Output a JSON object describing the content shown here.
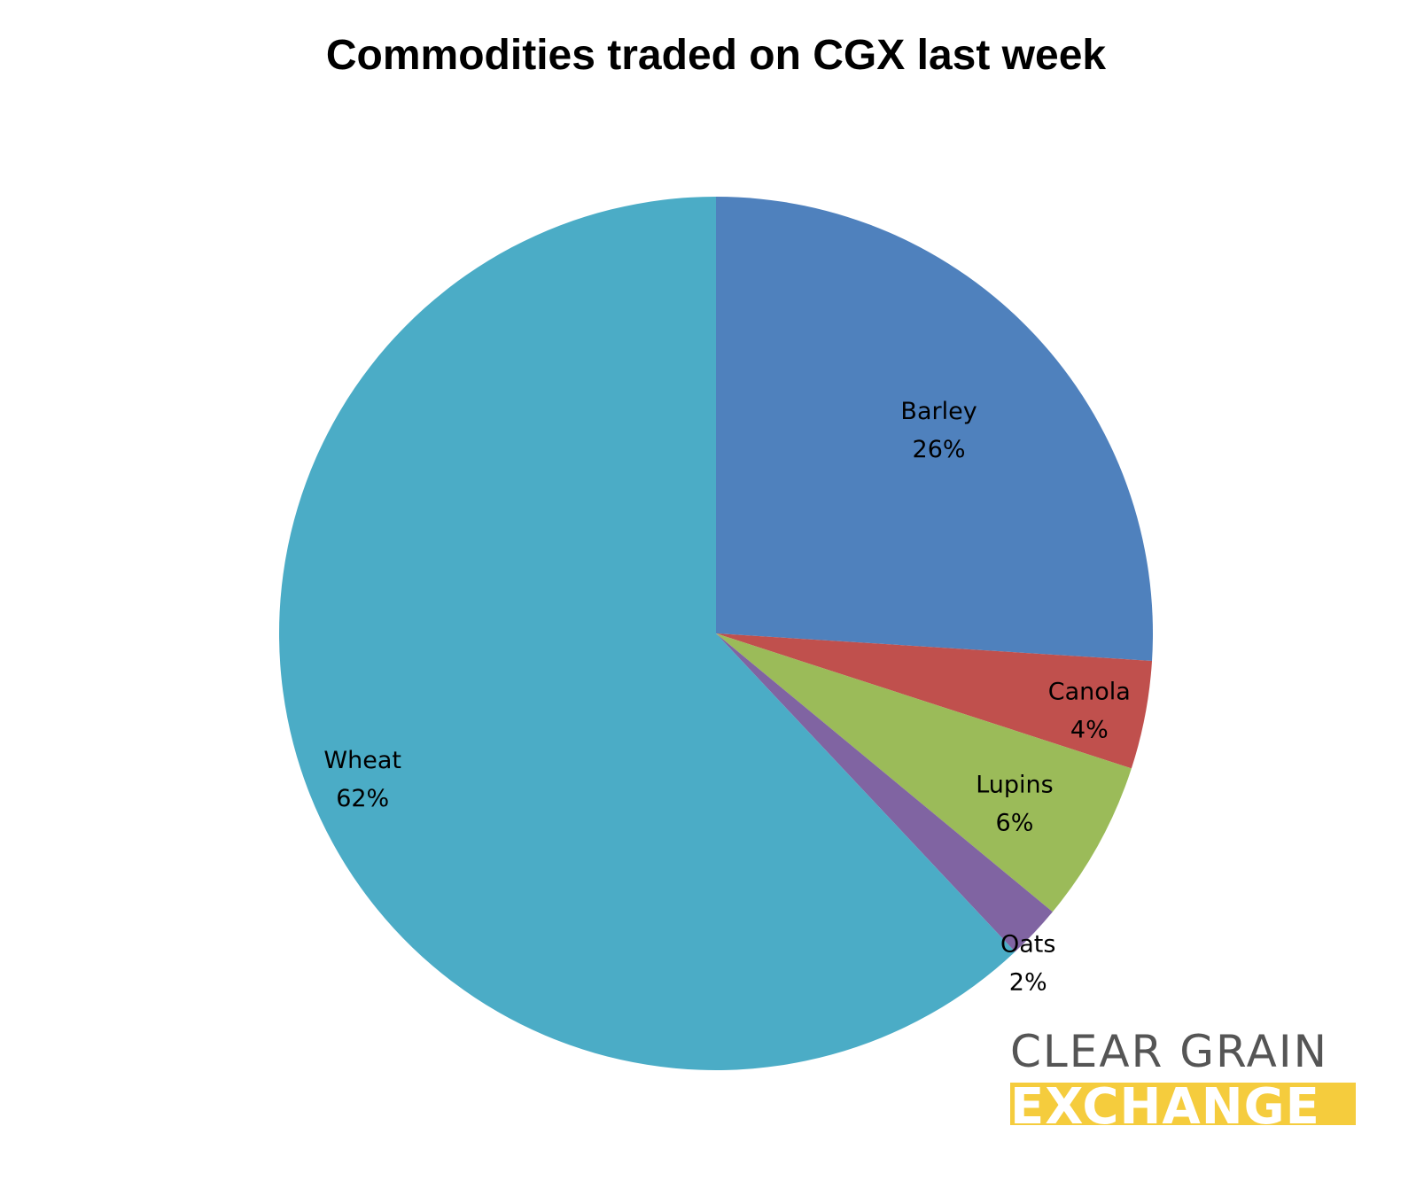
{
  "chart_data": {
    "type": "pie",
    "title": "Commodities traded on CGX last week",
    "slices": [
      {
        "label": "Barley",
        "value": 26,
        "value_label": "26%",
        "color": "#4f81bd"
      },
      {
        "label": "Canola",
        "value": 4,
        "value_label": "4%",
        "color": "#c0504d"
      },
      {
        "label": "Lupins",
        "value": 6,
        "value_label": "6%",
        "color": "#9bbb59"
      },
      {
        "label": "Oats",
        "value": 2,
        "value_label": "2%",
        "color": "#8064a2"
      },
      {
        "label": "Wheat",
        "value": 62,
        "value_label": "62%",
        "color": "#4bacc6"
      }
    ]
  },
  "logo": {
    "line1": "CLEAR GRAIN",
    "line2": "EXCHANGE",
    "line1_color": "#555555",
    "line2_bg_color": "#f5cc3d"
  }
}
